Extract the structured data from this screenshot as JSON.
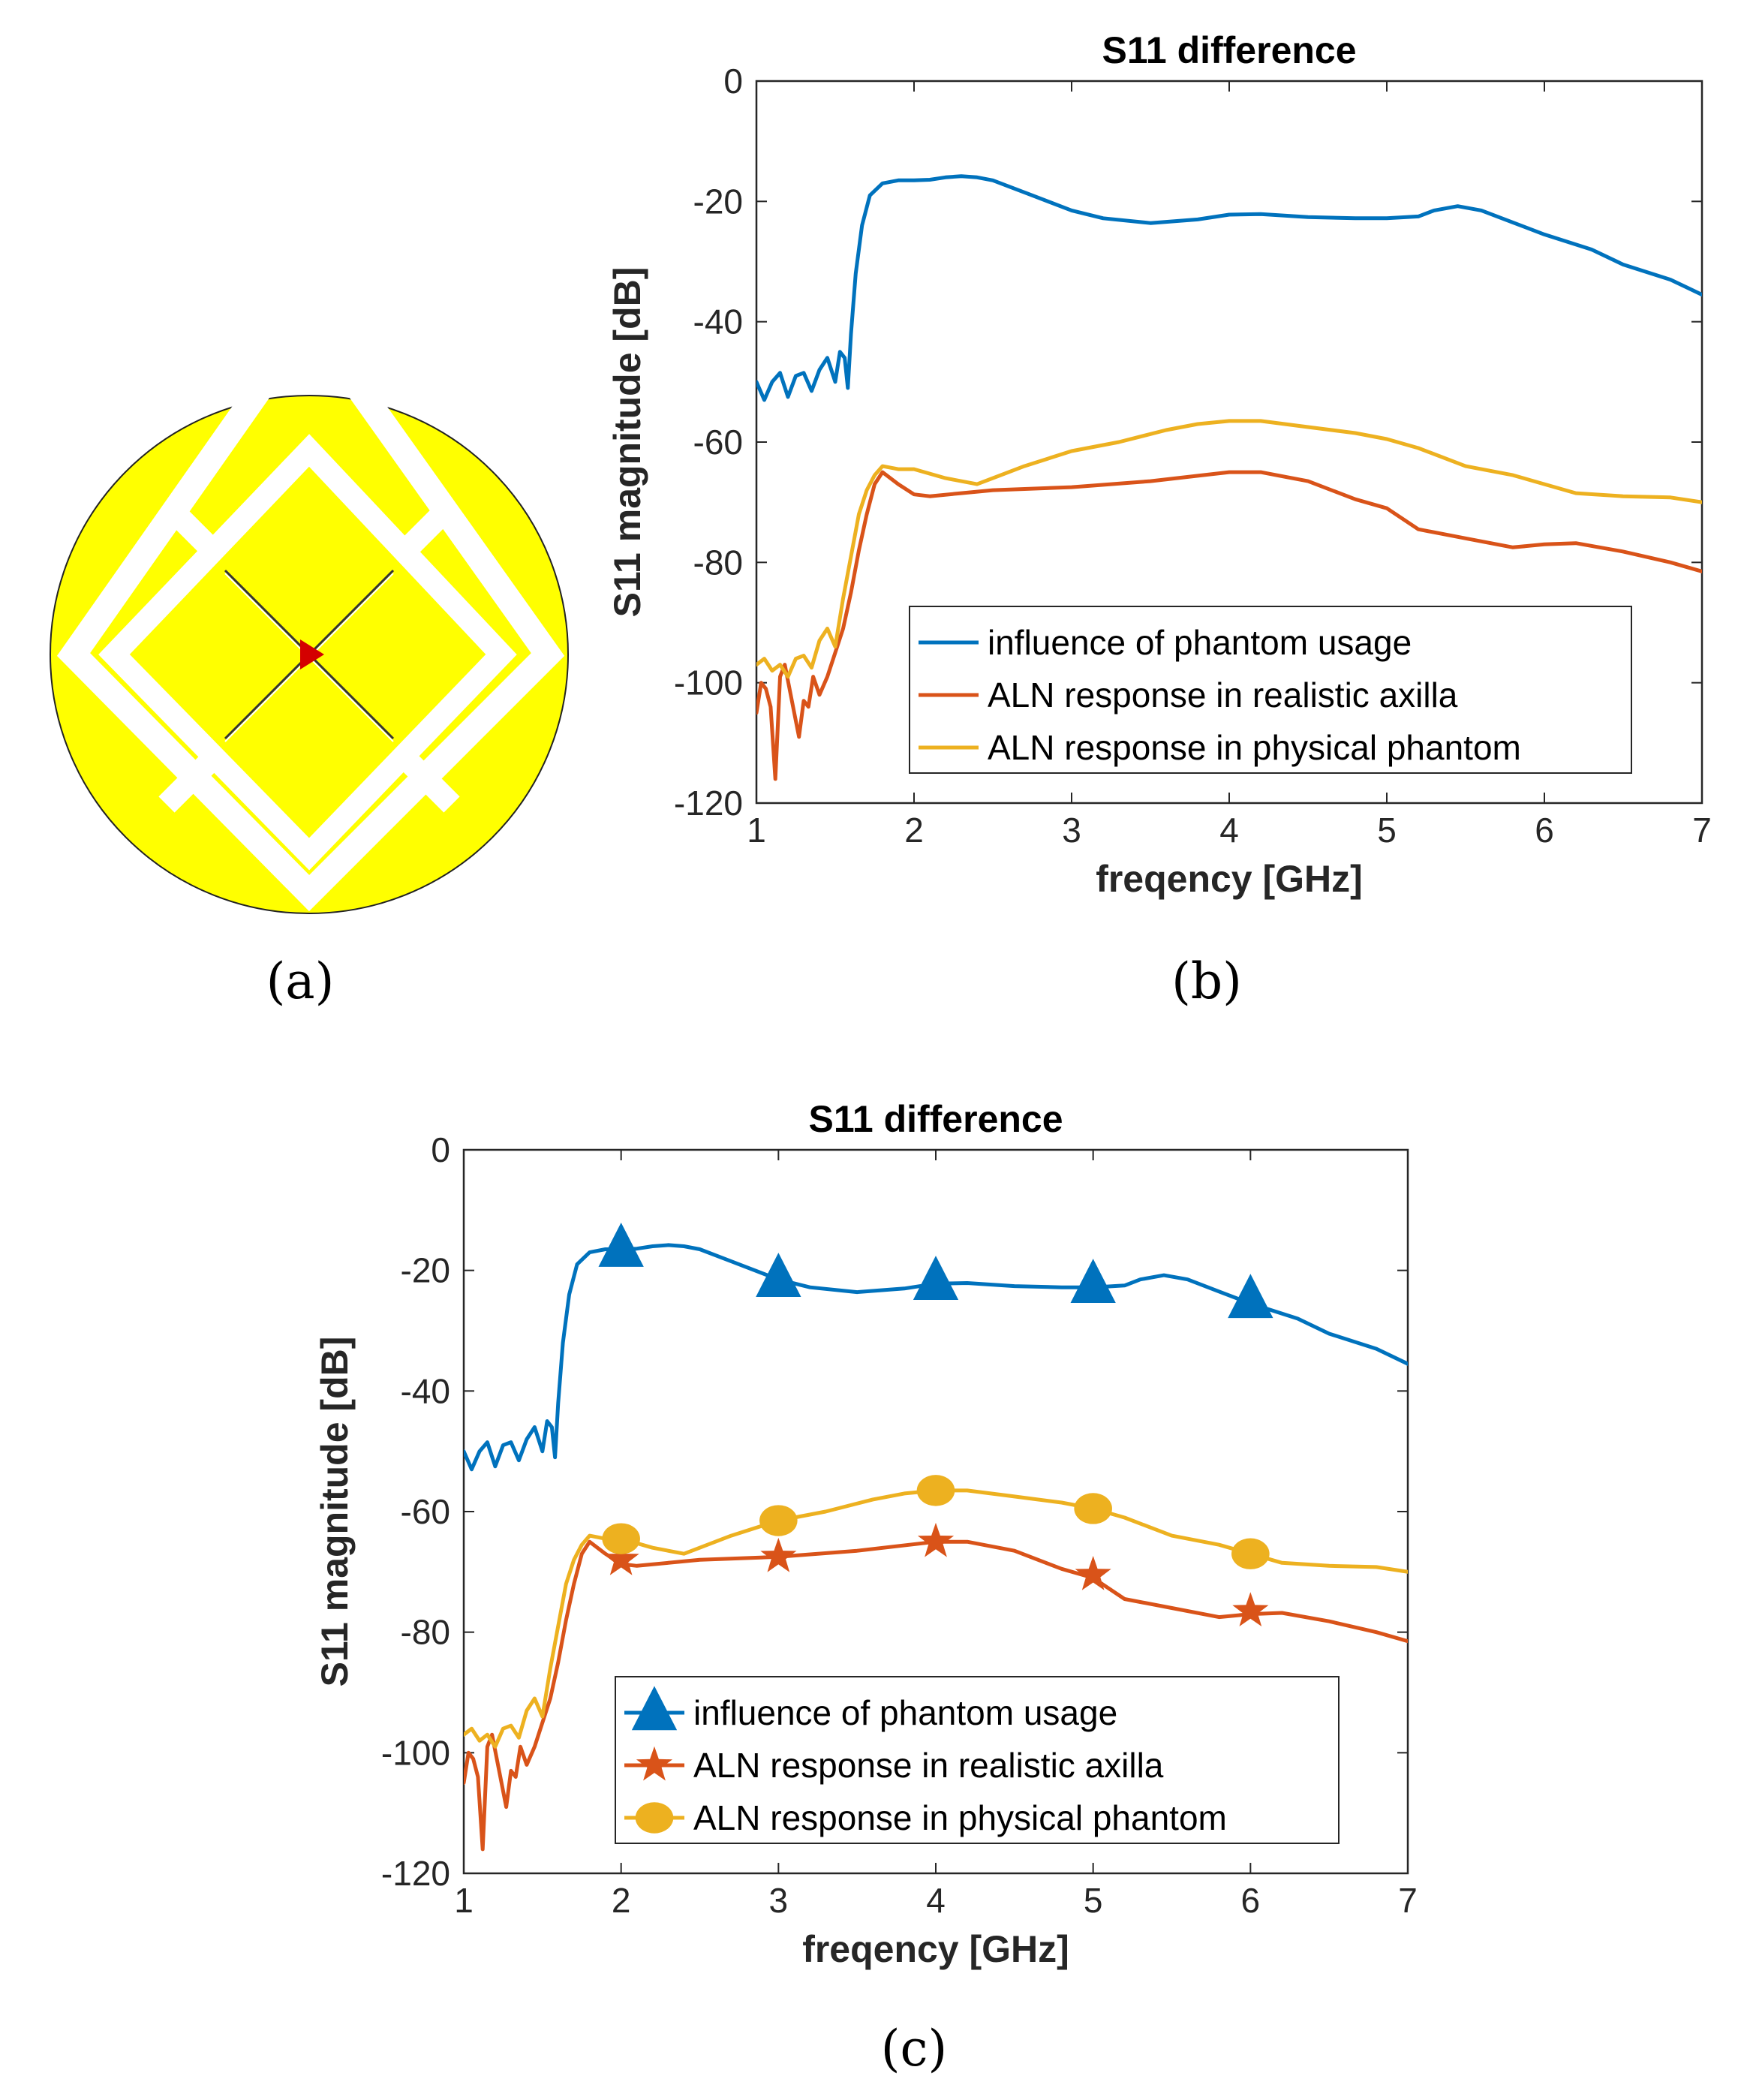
{
  "panels": {
    "a": {
      "label": "(a)"
    },
    "b": {
      "label": "(b)"
    },
    "c": {
      "label": "(c)"
    }
  },
  "colors": {
    "antenna_fill": "#ffff00",
    "antenna_slot": "#ffffff",
    "feed": "#d40000"
  },
  "chart_data": [
    {
      "type": "line",
      "panel": "b",
      "title": "S11 difference",
      "xlabel": "freqency [GHz]",
      "ylabel": "S11 magnitude [dB]",
      "xlim": [
        1,
        7
      ],
      "ylim": [
        -120,
        0
      ],
      "xticks": [
        1,
        2,
        3,
        4,
        5,
        6,
        7
      ],
      "yticks": [
        0,
        -20,
        -40,
        -60,
        -80,
        -100,
        -120
      ],
      "grid": false,
      "legend_position": "bottom-right",
      "markers": false,
      "series": [
        {
          "name": "influence of phantom usage",
          "color": "#0072bd",
          "x": [
            1.0,
            1.05,
            1.1,
            1.15,
            1.2,
            1.25,
            1.3,
            1.35,
            1.4,
            1.45,
            1.5,
            1.53,
            1.56,
            1.58,
            1.6,
            1.63,
            1.67,
            1.72,
            1.8,
            1.9,
            2.0,
            2.1,
            2.2,
            2.3,
            2.4,
            2.5,
            2.7,
            3.0,
            3.2,
            3.5,
            3.8,
            4.0,
            4.2,
            4.5,
            4.8,
            5.0,
            5.2,
            5.3,
            5.45,
            5.6,
            5.8,
            6.0,
            6.3,
            6.5,
            6.8,
            7.0
          ],
          "y": [
            -50,
            -53,
            -50,
            -48.5,
            -52.5,
            -49,
            -48.5,
            -51.5,
            -48,
            -46,
            -50,
            -45,
            -46,
            -51,
            -42,
            -32,
            -24,
            -19,
            -17,
            -16.5,
            -16.5,
            -16.4,
            -16,
            -15.8,
            -16,
            -16.5,
            -18.5,
            -21.5,
            -22.8,
            -23.6,
            -23,
            -22.2,
            -22.1,
            -22.6,
            -22.8,
            -22.8,
            -22.5,
            -21.5,
            -20.8,
            -21.5,
            -23.5,
            -25.5,
            -28,
            -30.5,
            -33,
            -35.5
          ]
        },
        {
          "name": "ALN response in realistic axilla",
          "color": "#d95319",
          "x": [
            1.0,
            1.03,
            1.06,
            1.09,
            1.12,
            1.15,
            1.18,
            1.21,
            1.24,
            1.27,
            1.3,
            1.33,
            1.36,
            1.4,
            1.45,
            1.5,
            1.55,
            1.6,
            1.65,
            1.7,
            1.75,
            1.8,
            1.9,
            2.0,
            2.1,
            2.3,
            2.5,
            3.0,
            3.5,
            4.0,
            4.2,
            4.5,
            4.8,
            5.0,
            5.2,
            5.5,
            5.8,
            6.0,
            6.2,
            6.5,
            6.8,
            7.0
          ],
          "y": [
            -105,
            -100,
            -101,
            -104,
            -116,
            -99,
            -97,
            -101,
            -105,
            -109,
            -103,
            -104,
            -99,
            -102,
            -99,
            -95,
            -91,
            -85,
            -78,
            -72,
            -67,
            -65,
            -67,
            -68.7,
            -69,
            -68.5,
            -68,
            -67.5,
            -66.5,
            -65,
            -65,
            -66.5,
            -69.5,
            -71,
            -74.5,
            -76,
            -77.5,
            -77,
            -76.8,
            -78.2,
            -80,
            -81.5
          ]
        },
        {
          "name": "ALN response in physical phantom",
          "color": "#edb120",
          "x": [
            1.0,
            1.05,
            1.1,
            1.15,
            1.2,
            1.25,
            1.3,
            1.35,
            1.4,
            1.45,
            1.5,
            1.55,
            1.6,
            1.65,
            1.7,
            1.75,
            1.8,
            1.9,
            2.0,
            2.2,
            2.4,
            2.7,
            3.0,
            3.3,
            3.6,
            3.8,
            4.0,
            4.2,
            4.5,
            4.8,
            5.0,
            5.2,
            5.5,
            5.8,
            6.0,
            6.2,
            6.5,
            6.8,
            7.0
          ],
          "y": [
            -97,
            -96,
            -98,
            -97,
            -99,
            -96,
            -95.5,
            -97.5,
            -93,
            -91,
            -94,
            -86,
            -79,
            -72,
            -68,
            -65.5,
            -64,
            -64.5,
            -64.5,
            -66,
            -67,
            -64,
            -61.5,
            -60,
            -58,
            -57,
            -56.5,
            -56.5,
            -57.5,
            -58.5,
            -59.5,
            -61,
            -64,
            -65.5,
            -67,
            -68.5,
            -69,
            -69.2,
            -70
          ]
        }
      ]
    },
    {
      "type": "line",
      "panel": "c",
      "title": "S11 difference",
      "xlabel": "freqency [GHz]",
      "ylabel": "S11 magnitude [dB]",
      "xlim": [
        1,
        7
      ],
      "ylim": [
        -120,
        0
      ],
      "xticks": [
        1,
        2,
        3,
        4,
        5,
        6,
        7
      ],
      "yticks": [
        0,
        -20,
        -40,
        -60,
        -80,
        -100,
        -120
      ],
      "grid": false,
      "legend_position": "bottom-right",
      "markers": true,
      "series": [
        {
          "name": "influence of phantom usage",
          "color": "#0072bd",
          "marker": "triangle",
          "marker_x": [
            2,
            3,
            4,
            5,
            6
          ],
          "marker_y": [
            -16.5,
            -21.5,
            -22,
            -22.5,
            -25
          ],
          "x": [
            1.0,
            1.05,
            1.1,
            1.15,
            1.2,
            1.25,
            1.3,
            1.35,
            1.4,
            1.45,
            1.5,
            1.53,
            1.56,
            1.58,
            1.6,
            1.63,
            1.67,
            1.72,
            1.8,
            1.9,
            2.0,
            2.1,
            2.2,
            2.3,
            2.4,
            2.5,
            2.7,
            3.0,
            3.2,
            3.5,
            3.8,
            4.0,
            4.2,
            4.5,
            4.8,
            5.0,
            5.2,
            5.3,
            5.45,
            5.6,
            5.8,
            6.0,
            6.3,
            6.5,
            6.8,
            7.0
          ],
          "y": [
            -50,
            -53,
            -50,
            -48.5,
            -52.5,
            -49,
            -48.5,
            -51.5,
            -48,
            -46,
            -50,
            -45,
            -46,
            -51,
            -42,
            -32,
            -24,
            -19,
            -17,
            -16.5,
            -16.5,
            -16.4,
            -16,
            -15.8,
            -16,
            -16.5,
            -18.5,
            -21.5,
            -22.8,
            -23.6,
            -23,
            -22.2,
            -22.1,
            -22.6,
            -22.8,
            -22.8,
            -22.5,
            -21.5,
            -20.8,
            -21.5,
            -23.5,
            -25.5,
            -28,
            -30.5,
            -33,
            -35.5
          ]
        },
        {
          "name": "ALN response in realistic axilla",
          "color": "#d95319",
          "marker": "star",
          "marker_x": [
            2,
            3,
            4,
            5,
            6
          ],
          "marker_y": [
            -68,
            -67.5,
            -65,
            -70.5,
            -76.5
          ],
          "x": [
            1.0,
            1.03,
            1.06,
            1.09,
            1.12,
            1.15,
            1.18,
            1.21,
            1.24,
            1.27,
            1.3,
            1.33,
            1.36,
            1.4,
            1.45,
            1.5,
            1.55,
            1.6,
            1.65,
            1.7,
            1.75,
            1.8,
            1.9,
            2.0,
            2.1,
            2.3,
            2.5,
            3.0,
            3.5,
            4.0,
            4.2,
            4.5,
            4.8,
            5.0,
            5.2,
            5.5,
            5.8,
            6.0,
            6.2,
            6.5,
            6.8,
            7.0
          ],
          "y": [
            -105,
            -100,
            -101,
            -104,
            -116,
            -99,
            -97,
            -101,
            -105,
            -109,
            -103,
            -104,
            -99,
            -102,
            -99,
            -95,
            -91,
            -85,
            -78,
            -72,
            -67,
            -65,
            -67,
            -68.7,
            -69,
            -68.5,
            -68,
            -67.5,
            -66.5,
            -65,
            -65,
            -66.5,
            -69.5,
            -71,
            -74.5,
            -76,
            -77.5,
            -77,
            -76.8,
            -78.2,
            -80,
            -81.5
          ]
        },
        {
          "name": "ALN response in physical phantom",
          "color": "#edb120",
          "marker": "circle",
          "marker_x": [
            2,
            3,
            4,
            5,
            6
          ],
          "marker_y": [
            -64.5,
            -61.5,
            -56.5,
            -59.5,
            -67
          ],
          "x": [
            1.0,
            1.05,
            1.1,
            1.15,
            1.2,
            1.25,
            1.3,
            1.35,
            1.4,
            1.45,
            1.5,
            1.55,
            1.6,
            1.65,
            1.7,
            1.75,
            1.8,
            1.9,
            2.0,
            2.2,
            2.4,
            2.7,
            3.0,
            3.3,
            3.6,
            3.8,
            4.0,
            4.2,
            4.5,
            4.8,
            5.0,
            5.2,
            5.5,
            5.8,
            6.0,
            6.2,
            6.5,
            6.8,
            7.0
          ],
          "y": [
            -97,
            -96,
            -98,
            -97,
            -99,
            -96,
            -95.5,
            -97.5,
            -93,
            -91,
            -94,
            -86,
            -79,
            -72,
            -68,
            -65.5,
            -64,
            -64.5,
            -64.5,
            -66,
            -67,
            -64,
            -61.5,
            -60,
            -58,
            -57,
            -56.5,
            -56.5,
            -57.5,
            -58.5,
            -59.5,
            -61,
            -64,
            -65.5,
            -67,
            -68.5,
            -69,
            -69.2,
            -70
          ]
        }
      ]
    }
  ]
}
